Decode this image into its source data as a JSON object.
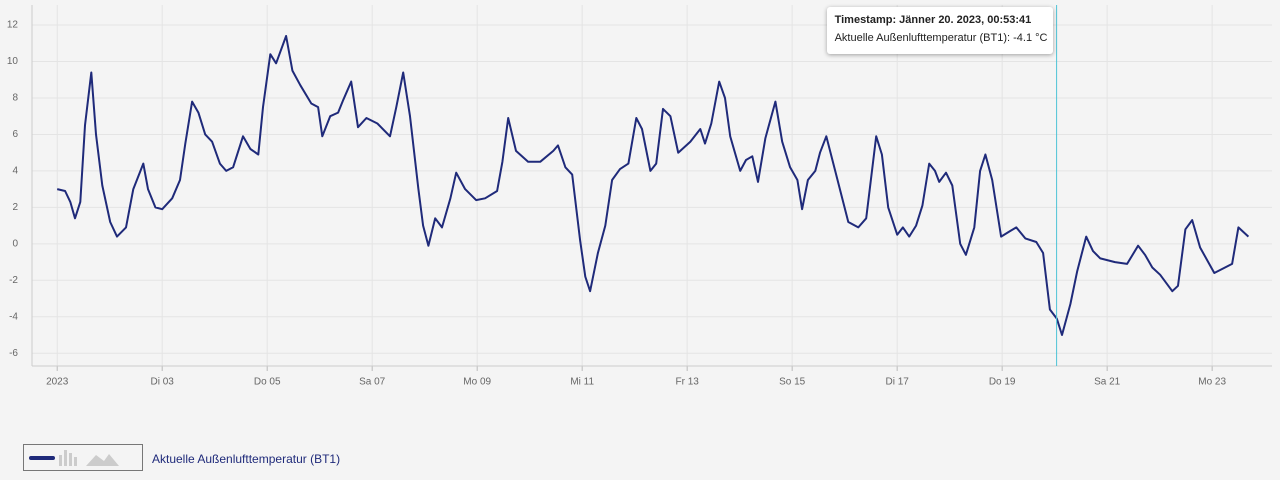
{
  "chart_data": {
    "type": "line",
    "x": [
      1.0,
      1.15,
      1.25,
      1.34,
      1.44,
      1.53,
      1.65,
      1.74,
      1.86,
      2.01,
      2.14,
      2.31,
      2.45,
      2.64,
      2.73,
      2.87,
      3.0,
      3.19,
      3.34,
      3.44,
      3.57,
      3.69,
      3.82,
      3.95,
      4.1,
      4.22,
      4.35,
      4.54,
      4.68,
      4.83,
      4.92,
      5.06,
      5.17,
      5.36,
      5.48,
      5.63,
      5.84,
      5.97,
      6.05,
      6.2,
      6.35,
      6.45,
      6.6,
      6.73,
      6.89,
      7.1,
      7.34,
      7.46,
      7.59,
      7.72,
      7.88,
      7.97,
      8.07,
      8.2,
      8.33,
      8.49,
      8.6,
      8.77,
      8.98,
      9.15,
      9.38,
      9.48,
      9.59,
      9.74,
      9.97,
      10.2,
      10.45,
      10.54,
      10.68,
      10.81,
      10.96,
      11.06,
      11.15,
      11.3,
      11.44,
      11.57,
      11.72,
      11.88,
      12.03,
      12.14,
      12.3,
      12.41,
      12.54,
      12.68,
      12.83,
      13.06,
      13.25,
      13.34,
      13.46,
      13.61,
      13.72,
      13.82,
      14.01,
      14.12,
      14.24,
      14.35,
      14.49,
      14.68,
      14.81,
      14.96,
      15.1,
      15.19,
      15.3,
      15.44,
      15.53,
      15.65,
      15.82,
      16.07,
      16.26,
      16.41,
      16.6,
      16.71,
      16.83,
      17.0,
      17.11,
      17.23,
      17.36,
      17.48,
      17.61,
      17.72,
      17.8,
      17.93,
      18.05,
      18.2,
      18.31,
      18.47,
      18.58,
      18.68,
      18.81,
      18.98,
      19.15,
      19.27,
      19.44,
      19.65,
      19.78,
      19.91,
      20.04,
      20.14,
      20.3,
      20.43,
      20.6,
      20.73,
      20.87,
      21.15,
      21.38,
      21.59,
      21.72,
      21.86,
      22.01,
      22.24,
      22.35,
      22.49,
      22.62,
      22.77,
      23.04,
      23.38,
      23.5,
      23.69
    ],
    "series": [
      {
        "name": "Aktuelle Außenlufttemperatur (BT1)",
        "color": "#1f2a7a",
        "values": [
          3.0,
          2.9,
          2.3,
          1.4,
          2.3,
          6.5,
          9.4,
          6.0,
          3.2,
          1.2,
          0.4,
          0.9,
          3.0,
          4.4,
          3.0,
          2.0,
          1.9,
          2.5,
          3.5,
          5.5,
          7.8,
          7.2,
          6.0,
          5.6,
          4.4,
          4.0,
          4.2,
          5.9,
          5.2,
          4.9,
          7.5,
          10.4,
          9.9,
          11.4,
          9.5,
          8.7,
          7.7,
          7.5,
          5.9,
          7.0,
          7.2,
          7.9,
          8.9,
          6.4,
          6.9,
          6.6,
          5.9,
          7.5,
          9.4,
          7.0,
          3.0,
          1.0,
          -0.1,
          1.4,
          0.9,
          2.5,
          3.9,
          3.0,
          2.4,
          2.5,
          2.9,
          4.5,
          6.9,
          5.1,
          4.5,
          4.5,
          5.1,
          5.4,
          4.2,
          3.8,
          0.2,
          -1.8,
          -2.6,
          -0.5,
          1.0,
          3.5,
          4.1,
          4.4,
          6.9,
          6.3,
          4.0,
          4.4,
          7.4,
          7.0,
          5.0,
          5.6,
          6.3,
          5.5,
          6.6,
          8.9,
          8.0,
          5.9,
          4.0,
          4.6,
          4.8,
          3.4,
          5.8,
          7.8,
          5.6,
          4.2,
          3.5,
          1.9,
          3.5,
          4.0,
          5.0,
          5.9,
          4.0,
          1.2,
          0.9,
          1.4,
          5.9,
          4.9,
          2.0,
          0.5,
          0.9,
          0.4,
          1.0,
          2.1,
          4.4,
          4.0,
          3.4,
          3.9,
          3.2,
          0.0,
          -0.6,
          0.9,
          4.0,
          4.9,
          3.5,
          0.4,
          0.7,
          0.9,
          0.3,
          0.1,
          -0.5,
          -3.6,
          -4.1,
          -5.0,
          -3.3,
          -1.5,
          0.4,
          -0.4,
          -0.8,
          -1.0,
          -1.1,
          -0.1,
          -0.6,
          -1.3,
          -1.7,
          -2.6,
          -2.3,
          0.8,
          1.3,
          -0.2,
          -1.6,
          -1.1,
          0.9,
          0.4
        ]
      }
    ],
    "xlim": [
      0.52,
      24.14
    ],
    "xticks": [
      {
        "value": 1,
        "label": "2023"
      },
      {
        "value": 3,
        "label": "Di 03"
      },
      {
        "value": 5,
        "label": "Do 05"
      },
      {
        "value": 7,
        "label": "Sa 07"
      },
      {
        "value": 9,
        "label": "Mo 09"
      },
      {
        "value": 11,
        "label": "Mi 11"
      },
      {
        "value": 13,
        "label": "Fr 13"
      },
      {
        "value": 15,
        "label": "So 15"
      },
      {
        "value": 17,
        "label": "Di 17"
      },
      {
        "value": 19,
        "label": "Do 19"
      },
      {
        "value": 21,
        "label": "Sa 21"
      },
      {
        "value": 23,
        "label": "Mo 23"
      }
    ],
    "ylim": [
      -6.7,
      13.1
    ],
    "yticks": [
      -6,
      -4,
      -2,
      0,
      2,
      4,
      6,
      8,
      10,
      12
    ],
    "grid": true,
    "tooltip": {
      "x": 20.037,
      "title": "Timestamp: Jänner 20. 2023, 00:53:41",
      "text": "Aktuelle Außenlufttemperatur (BT1): -4.1 °C"
    }
  }
}
